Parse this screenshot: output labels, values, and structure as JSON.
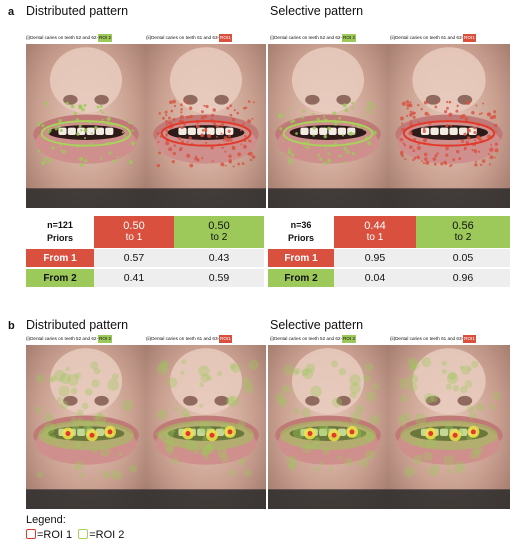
{
  "colors": {
    "roi1": "#d9503e",
    "roi2": "#9cc95a",
    "roi1_outline": "#e23a2a",
    "roi2_outline": "#a7d35a",
    "row_from1": "#d9503e",
    "row_from2": "#9cc95a"
  },
  "panel_a": {
    "letter": "a",
    "distributed": {
      "title": "Distributed pattern",
      "caption_left": "(i)Dental caries on teeth 52 and 62-",
      "caption_left_roi": "ROI 2",
      "caption_right": "(ii)Dental caries on teeth 61 and 63-",
      "caption_right_roi": "ROI1",
      "matrix": {
        "n": "n=121",
        "priors_label": "Priors",
        "prior1_value": "0.50",
        "prior1_to": "to 1",
        "prior2_value": "0.50",
        "prior2_to": "to 2",
        "from1_label": "From 1",
        "from2_label": "From 2",
        "r1c1": "0.57",
        "r1c2": "0.43",
        "r2c1": "0.41",
        "r2c2": "0.59"
      }
    },
    "selective": {
      "title": "Selective pattern",
      "caption_left": "(i)Dental caries on teeth 52 and 62-",
      "caption_left_roi": "ROI 2",
      "caption_right": "(ii)Dental caries on teeth 61 and 63-",
      "caption_right_roi": "ROI1",
      "matrix": {
        "n": "n=36",
        "priors_label": "Priors",
        "prior1_value": "0.44",
        "prior1_to": "to 1",
        "prior2_value": "0.56",
        "prior2_to": "to 2",
        "from1_label": "From 1",
        "from2_label": "From 2",
        "r1c1": "0.95",
        "r1c2": "0.05",
        "r2c1": "0.04",
        "r2c2": "0.96"
      }
    }
  },
  "panel_b": {
    "letter": "b",
    "distributed": {
      "title": "Distributed pattern",
      "caption_left": "(i)Dental caries on teeth 52 and 62-",
      "caption_left_roi": "ROI 2",
      "caption_right": "(ii)Dental caries on teeth 61 and 63-",
      "caption_right_roi": "ROI1"
    },
    "selective": {
      "title": "Selective pattern",
      "caption_left": "(i)Dental caries on teeth 52 and 62-",
      "caption_left_roi": "ROI 2",
      "caption_right": "(ii)Dental caries on teeth 61 and 63-",
      "caption_right_roi": "ROI1"
    }
  },
  "legend": {
    "title": "Legend:",
    "roi1_label": "=ROI 1",
    "roi2_label": "=ROI 2"
  }
}
